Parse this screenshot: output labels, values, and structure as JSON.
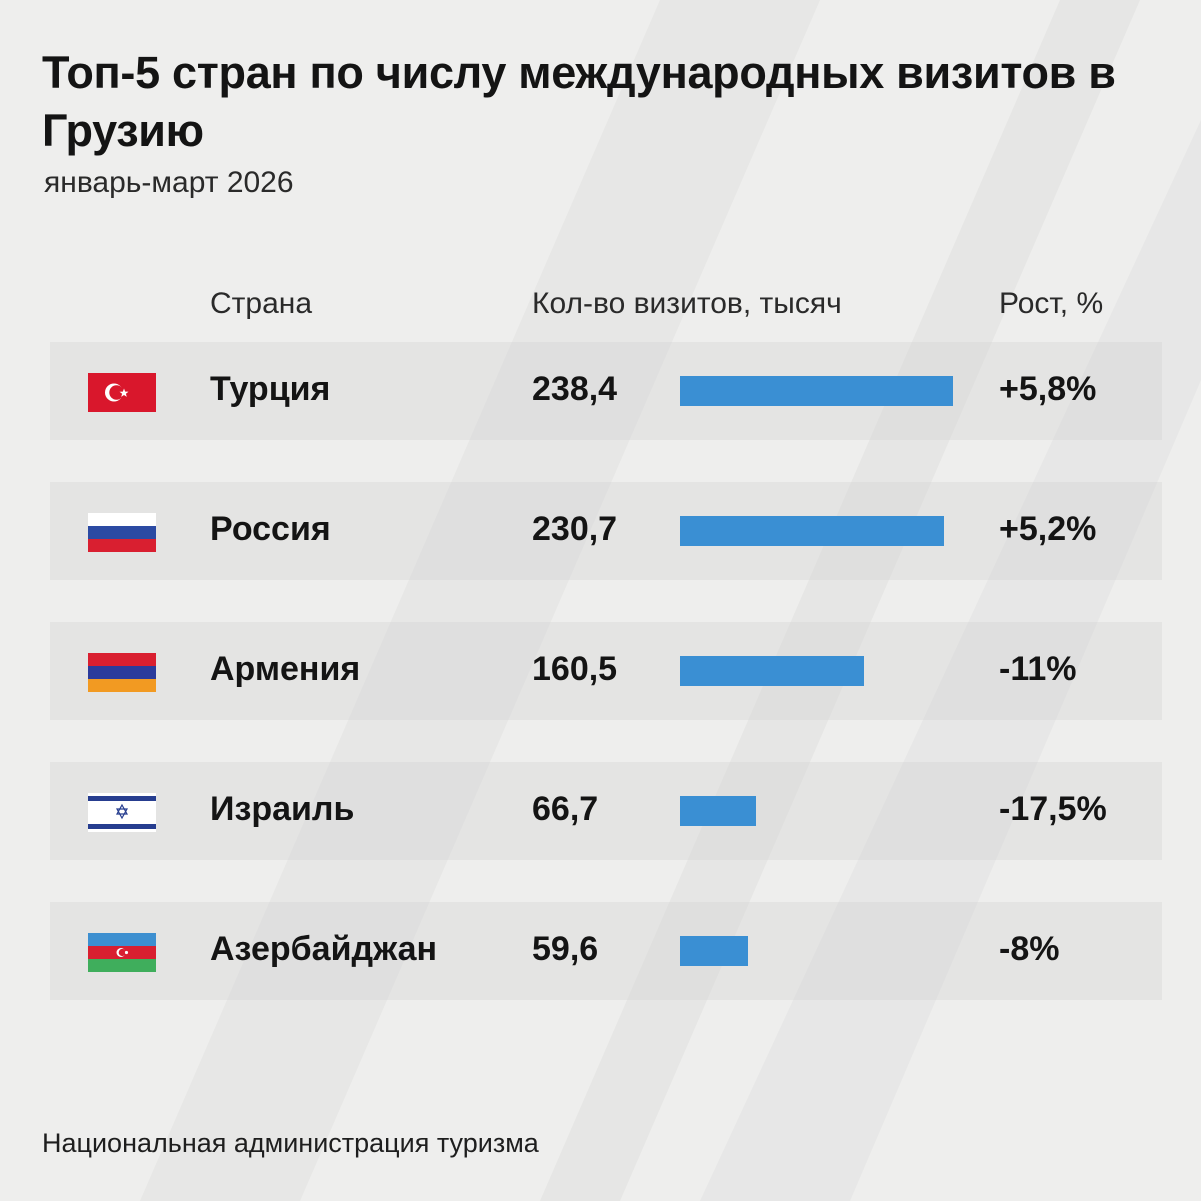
{
  "chart_data": {
    "type": "bar",
    "title": "Топ-5 стран по числу международных визитов в Грузию",
    "subtitle": "январь-март 2026",
    "headers": {
      "country": "Страна",
      "visits": "Кол-во визитов, тысяч",
      "growth": "Рост, %"
    },
    "categories": [
      "Турция",
      "Россия",
      "Армения",
      "Израиль",
      "Азербайджан"
    ],
    "values": [
      238.4,
      230.7,
      160.5,
      66.7,
      59.6
    ],
    "value_labels": [
      "238,4",
      "230,7",
      "160,5",
      "66,7",
      "59,6"
    ],
    "growth": [
      "+5,8%",
      "+5,2%",
      "-11%",
      "-17,5%",
      "-8%"
    ],
    "flags": [
      "turkey-flag",
      "russia-flag",
      "armenia-flag",
      "israel-flag",
      "azerbaijan-flag"
    ],
    "bar_color": "#3a8fd3",
    "source": "Национальная администрация туризма"
  }
}
